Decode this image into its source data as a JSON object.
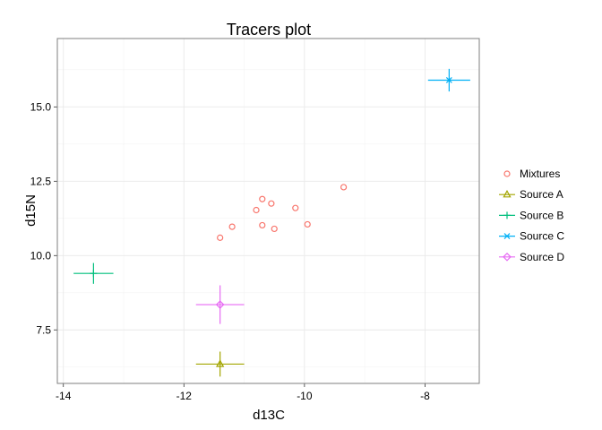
{
  "chart_data": {
    "type": "scatter",
    "title": "Tracers plot",
    "xlabel": "d13C",
    "ylabel": "d15N",
    "xlim": [
      -14.1,
      -7.1
    ],
    "ylim": [
      5.7,
      17.3
    ],
    "xticks": [
      -14,
      -12,
      -10,
      -8
    ],
    "xtick_labels": [
      "-14",
      "-12",
      "-10",
      "-8"
    ],
    "yticks": [
      7.5,
      10.0,
      12.5,
      15.0
    ],
    "ytick_labels": [
      "7.5",
      "10.0",
      "12.5",
      "15.0"
    ],
    "grid": true,
    "legend_position": "right",
    "mixtures": {
      "name": "Mixtures",
      "color": "#F8766D",
      "marker": "circle",
      "x": [
        -11.4,
        -11.2,
        -10.8,
        -10.7,
        -10.7,
        -10.55,
        -10.5,
        -10.15,
        -9.95,
        -9.35
      ],
      "y": [
        10.6,
        10.97,
        11.53,
        11.02,
        11.9,
        11.75,
        10.9,
        11.6,
        11.05,
        12.3
      ]
    },
    "sources": [
      {
        "name": "Source A",
        "color": "#A3A500",
        "marker": "triangle",
        "x": -11.4,
        "y": 6.35,
        "x_err": 0.4,
        "y_err": 0.42
      },
      {
        "name": "Source B",
        "color": "#00BF7D",
        "marker": "plus",
        "x": -13.5,
        "y": 9.4,
        "x_err": 0.33,
        "y_err": 0.35
      },
      {
        "name": "Source C",
        "color": "#00B0F6",
        "marker": "cross",
        "x": -7.6,
        "y": 15.9,
        "x_err": 0.35,
        "y_err": 0.38
      },
      {
        "name": "Source D",
        "color": "#E76BF3",
        "marker": "diamond",
        "x": -11.4,
        "y": 8.35,
        "x_err": 0.4,
        "y_err": 0.65
      }
    ]
  }
}
